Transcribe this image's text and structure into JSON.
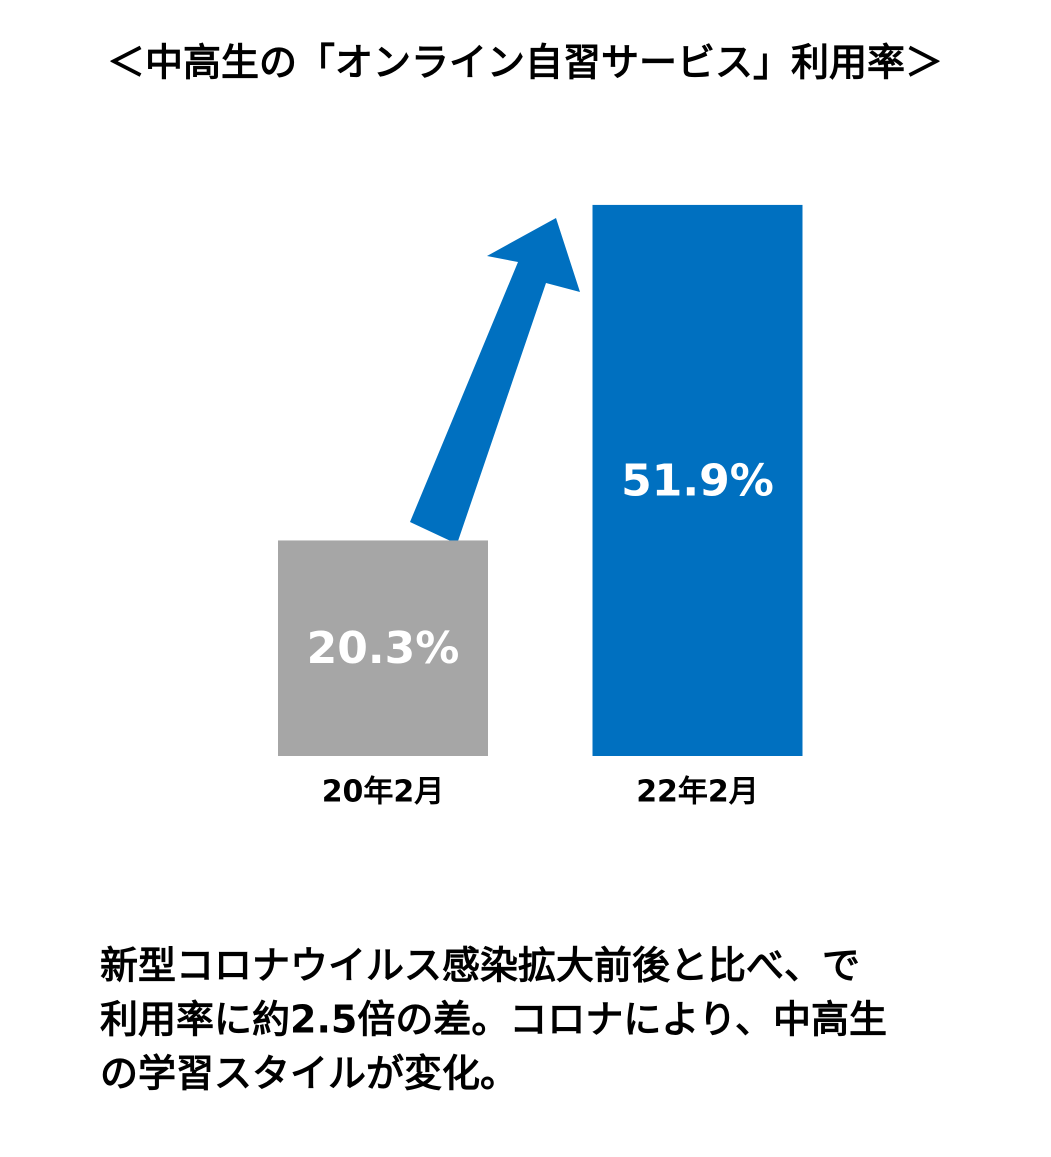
{
  "chart_data": {
    "type": "bar",
    "title": "＜中高生の「オンライン自習サービス」利用率＞",
    "categories": [
      "20年2月",
      "22年2月"
    ],
    "values": [
      20.3,
      51.9
    ],
    "value_labels": [
      "20.3%",
      "51.9%"
    ],
    "colors": [
      "#a6a6a6",
      "#0070c0"
    ],
    "ylim": [
      0,
      55
    ],
    "annotation": [
      "新型コロナウイルス感染拡大前後と比べ、で",
      "利用率に約2.5倍の差。コロナにより、中高生",
      "の学習スタイルが変化。"
    ]
  }
}
